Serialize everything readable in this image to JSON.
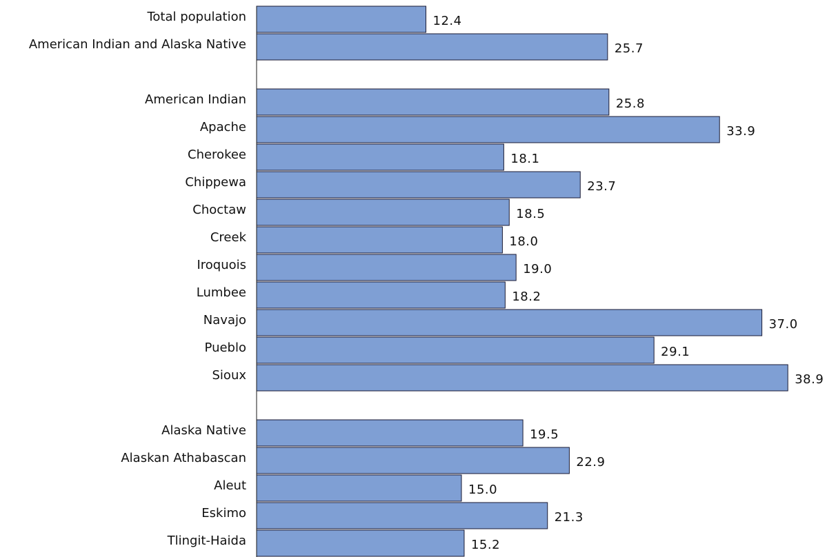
{
  "chart_data": {
    "type": "bar",
    "orientation": "horizontal",
    "categories": [
      "Total population",
      "American Indian and Alaska Native",
      "",
      "American Indian",
      "Apache",
      "Cherokee",
      "Chippewa",
      "Choctaw",
      "Creek",
      "Iroquois",
      "Lumbee",
      "Navajo",
      "Pueblo",
      "Sioux",
      "",
      "Alaska Native",
      "Alaskan Athabascan",
      "Aleut",
      "Eskimo",
      "Tlingit-Haida"
    ],
    "values": [
      12.4,
      25.7,
      null,
      25.8,
      33.9,
      18.1,
      23.7,
      18.5,
      18.0,
      19.0,
      18.2,
      37.0,
      29.1,
      38.9,
      null,
      19.5,
      22.9,
      15.0,
      21.3,
      15.2
    ],
    "value_labels": [
      "12.4",
      "25.7",
      "",
      "25.8",
      "33.9",
      "18.1",
      "23.7",
      "18.5",
      "18.0",
      "19.0",
      "18.2",
      "37.0",
      "29.1",
      "38.9",
      "",
      "19.5",
      "22.9",
      "15.0",
      "21.3",
      "15.2"
    ],
    "title": "",
    "xlabel": "",
    "ylabel": "",
    "xlim": [
      0,
      39
    ],
    "bar_color": "#7f9fd4",
    "bar_edge_color": "#1a1a33",
    "grid": false,
    "legend": "none"
  }
}
